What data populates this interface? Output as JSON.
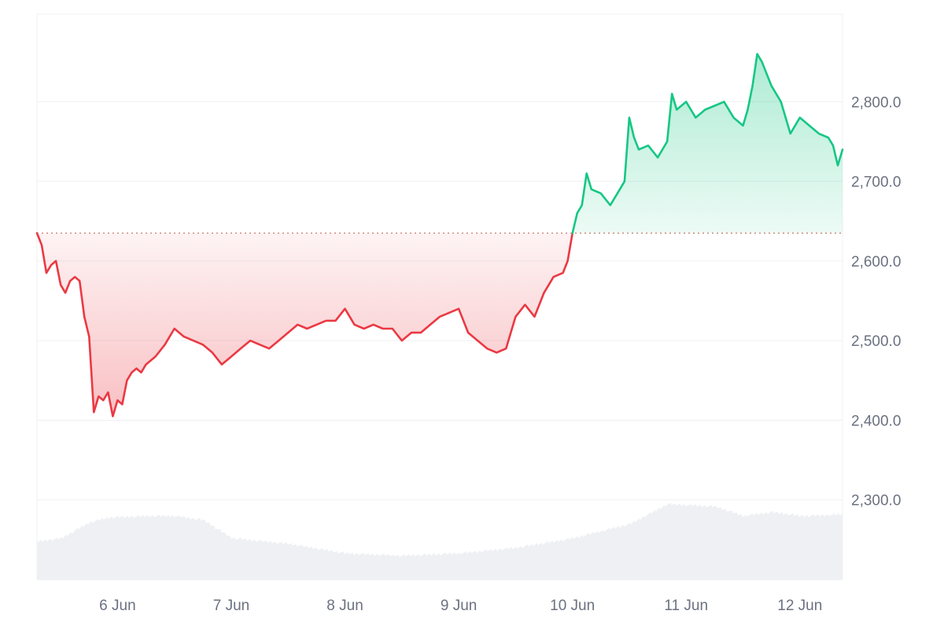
{
  "chart_data": {
    "type": "area",
    "title": "",
    "xlabel": "",
    "ylabel": "",
    "baseline": 2635,
    "ylim": [
      2200,
      2910
    ],
    "x_start": "2024-06-05T07:00",
    "x_end": "2024-06-12T09:00",
    "x_ticks": [
      {
        "label": "6 Jun",
        "x": "2024-06-06T00:00"
      },
      {
        "label": "7 Jun",
        "x": "2024-06-07T00:00"
      },
      {
        "label": "8 Jun",
        "x": "2024-06-08T00:00"
      },
      {
        "label": "9 Jun",
        "x": "2024-06-09T00:00"
      },
      {
        "label": "10 Jun",
        "x": "2024-06-10T00:00"
      },
      {
        "label": "11 Jun",
        "x": "2024-06-11T00:00"
      },
      {
        "label": "12 Jun",
        "x": "2024-06-12T00:00"
      }
    ],
    "y_ticks": [
      {
        "label": "2,800.0",
        "value": 2800
      },
      {
        "label": "2,700.0",
        "value": 2700
      },
      {
        "label": "2,600.0",
        "value": 2600
      },
      {
        "label": "2,500.0",
        "value": 2500
      },
      {
        "label": "2,400.0",
        "value": 2400
      },
      {
        "label": "2,300.0",
        "value": 2300
      }
    ],
    "grid": true,
    "colors": {
      "up_line": "#16c784",
      "up_fill": "#16c784",
      "down_line": "#ea3943",
      "down_fill": "#ea3943",
      "baseline": "#c97a6b",
      "grid": "#eff0f3",
      "volume": "#eef0f3",
      "axis_text": "#6b7180"
    },
    "series": [
      {
        "x": [
          "2024-06-05T07:00",
          "2024-06-05T08:00",
          "2024-06-05T09:00",
          "2024-06-05T10:00",
          "2024-06-05T11:00",
          "2024-06-05T12:00",
          "2024-06-05T13:00",
          "2024-06-05T14:00",
          "2024-06-05T15:00",
          "2024-06-05T16:00",
          "2024-06-05T17:00",
          "2024-06-05T18:00",
          "2024-06-05T19:00",
          "2024-06-05T20:00",
          "2024-06-05T21:00",
          "2024-06-05T22:00",
          "2024-06-05T23:00",
          "2024-06-06T00:00",
          "2024-06-06T01:00",
          "2024-06-06T02:00",
          "2024-06-06T03:00",
          "2024-06-06T04:00",
          "2024-06-06T05:00",
          "2024-06-06T06:00",
          "2024-06-06T08:00",
          "2024-06-06T10:00",
          "2024-06-06T12:00",
          "2024-06-06T14:00",
          "2024-06-06T16:00",
          "2024-06-06T18:00",
          "2024-06-06T20:00",
          "2024-06-06T22:00",
          "2024-06-07T00:00",
          "2024-06-07T02:00",
          "2024-06-07T04:00",
          "2024-06-07T06:00",
          "2024-06-07T08:00",
          "2024-06-07T10:00",
          "2024-06-07T12:00",
          "2024-06-07T14:00",
          "2024-06-07T16:00",
          "2024-06-07T18:00",
          "2024-06-07T20:00",
          "2024-06-07T22:00",
          "2024-06-08T00:00",
          "2024-06-08T02:00",
          "2024-06-08T04:00",
          "2024-06-08T06:00",
          "2024-06-08T08:00",
          "2024-06-08T10:00",
          "2024-06-08T12:00",
          "2024-06-08T14:00",
          "2024-06-08T16:00",
          "2024-06-08T18:00",
          "2024-06-08T20:00",
          "2024-06-08T22:00",
          "2024-06-09T00:00",
          "2024-06-09T02:00",
          "2024-06-09T04:00",
          "2024-06-09T06:00",
          "2024-06-09T08:00",
          "2024-06-09T10:00",
          "2024-06-09T12:00",
          "2024-06-09T14:00",
          "2024-06-09T16:00",
          "2024-06-09T18:00",
          "2024-06-09T20:00",
          "2024-06-09T22:00",
          "2024-06-09T23:00",
          "2024-06-10T00:00",
          "2024-06-10T01:00",
          "2024-06-10T02:00",
          "2024-06-10T03:00",
          "2024-06-10T04:00",
          "2024-06-10T06:00",
          "2024-06-10T08:00",
          "2024-06-10T10:00",
          "2024-06-10T11:00",
          "2024-06-10T12:00",
          "2024-06-10T13:00",
          "2024-06-10T14:00",
          "2024-06-10T16:00",
          "2024-06-10T18:00",
          "2024-06-10T20:00",
          "2024-06-10T21:00",
          "2024-06-10T22:00",
          "2024-06-11T00:00",
          "2024-06-11T02:00",
          "2024-06-11T04:00",
          "2024-06-11T06:00",
          "2024-06-11T08:00",
          "2024-06-11T10:00",
          "2024-06-11T12:00",
          "2024-06-11T13:00",
          "2024-06-11T14:00",
          "2024-06-11T15:00",
          "2024-06-11T16:00",
          "2024-06-11T18:00",
          "2024-06-11T20:00",
          "2024-06-11T22:00",
          "2024-06-12T00:00",
          "2024-06-12T02:00",
          "2024-06-12T04:00",
          "2024-06-12T06:00",
          "2024-06-12T07:00",
          "2024-06-12T08:00",
          "2024-06-12T09:00"
        ],
        "y": [
          2635,
          2620,
          2585,
          2595,
          2600,
          2570,
          2560,
          2575,
          2580,
          2575,
          2530,
          2505,
          2410,
          2430,
          2425,
          2435,
          2405,
          2425,
          2420,
          2450,
          2460,
          2465,
          2460,
          2470,
          2480,
          2495,
          2515,
          2505,
          2500,
          2495,
          2485,
          2470,
          2480,
          2490,
          2500,
          2495,
          2490,
          2500,
          2510,
          2520,
          2515,
          2520,
          2525,
          2525,
          2540,
          2520,
          2515,
          2520,
          2515,
          2515,
          2500,
          2510,
          2510,
          2520,
          2530,
          2535,
          2540,
          2510,
          2500,
          2490,
          2485,
          2490,
          2530,
          2545,
          2530,
          2560,
          2580,
          2585,
          2600,
          2635,
          2660,
          2670,
          2710,
          2690,
          2685,
          2670,
          2690,
          2700,
          2780,
          2755,
          2740,
          2745,
          2730,
          2750,
          2810,
          2790,
          2800,
          2780,
          2790,
          2795,
          2800,
          2780,
          2770,
          2790,
          2820,
          2860,
          2850,
          2820,
          2800,
          2760,
          2780,
          2770,
          2760,
          2755,
          2745,
          2720,
          2740
        ]
      }
    ],
    "volume": {
      "ylim": [
        0,
        100
      ],
      "x": [
        "2024-06-05T07:00",
        "2024-06-05T12:00",
        "2024-06-05T18:00",
        "2024-06-05T22:00",
        "2024-06-06T06:00",
        "2024-06-06T12:00",
        "2024-06-06T18:00",
        "2024-06-07T00:00",
        "2024-06-07T12:00",
        "2024-06-08T00:00",
        "2024-06-08T12:00",
        "2024-06-09T00:00",
        "2024-06-09T12:00",
        "2024-06-10T00:00",
        "2024-06-10T12:00",
        "2024-06-10T20:00",
        "2024-06-11T06:00",
        "2024-06-11T12:00",
        "2024-06-11T18:00",
        "2024-06-12T00:00",
        "2024-06-12T09:00"
      ],
      "values": [
        48,
        52,
        72,
        78,
        80,
        80,
        75,
        52,
        45,
        33,
        30,
        33,
        40,
        52,
        70,
        95,
        92,
        80,
        85,
        80,
        82
      ]
    }
  }
}
